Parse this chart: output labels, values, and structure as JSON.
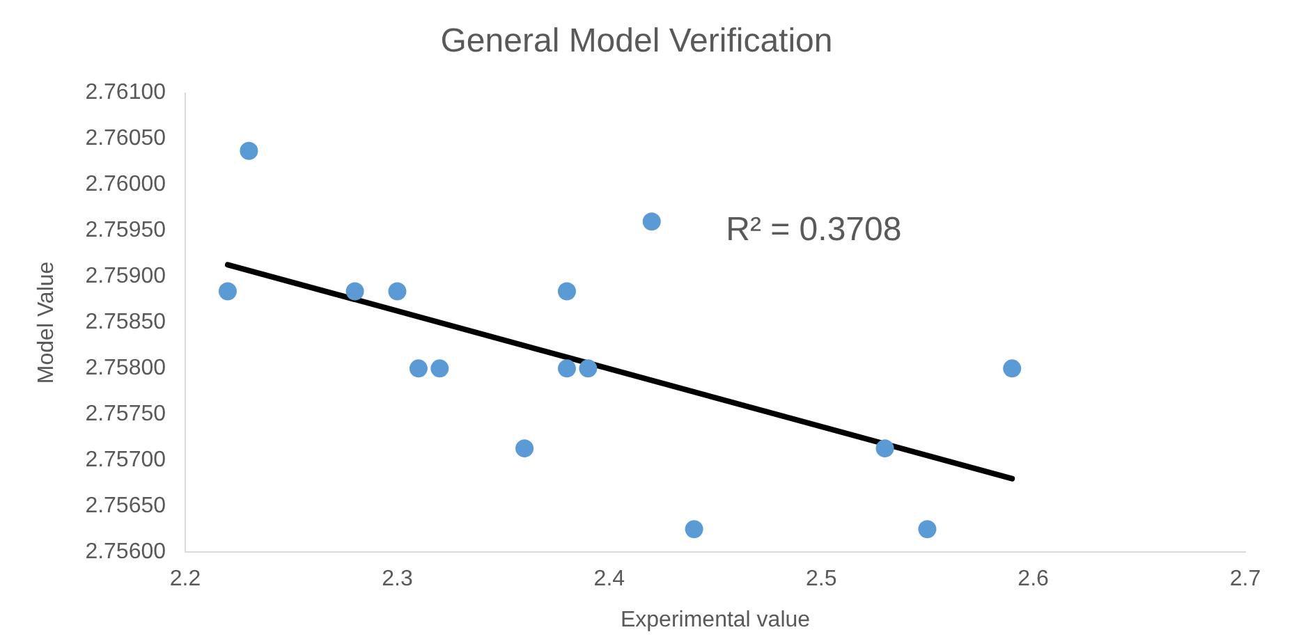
{
  "chart_data": {
    "type": "scatter",
    "title": "General Model Verification",
    "xlabel": "Experimental value",
    "ylabel": "Model Value",
    "annotations": [
      "R² = 0.3708"
    ],
    "marker": "circle",
    "grid": false,
    "legend": false,
    "xlim": [
      2.2,
      2.7
    ],
    "xticks": [
      {
        "value": 2.2,
        "label": "2.2"
      },
      {
        "value": 2.3,
        "label": "2.3"
      },
      {
        "value": 2.4,
        "label": "2.4"
      },
      {
        "value": 2.5,
        "label": "2.5"
      },
      {
        "value": 2.6,
        "label": "2.6"
      },
      {
        "value": 2.7,
        "label": "2.7"
      }
    ],
    "ylim": [
      2.756,
      2.761
    ],
    "yticks": [
      {
        "value": 2.756,
        "label": "2.75600"
      },
      {
        "value": 2.7565,
        "label": "2.75650"
      },
      {
        "value": 2.757,
        "label": "2.75700"
      },
      {
        "value": 2.7575,
        "label": "2.75750"
      },
      {
        "value": 2.758,
        "label": "2.75800"
      },
      {
        "value": 2.7585,
        "label": "2.75850"
      },
      {
        "value": 2.759,
        "label": "2.75900"
      },
      {
        "value": 2.7595,
        "label": "2.75950"
      },
      {
        "value": 2.76,
        "label": "2.76000"
      },
      {
        "value": 2.7605,
        "label": "2.76050"
      },
      {
        "value": 2.761,
        "label": "2.76100"
      }
    ],
    "series": [
      {
        "type": "scatter",
        "color": "#5b9bd5",
        "x": [
          2.22,
          2.23,
          2.28,
          2.3,
          2.31,
          2.32,
          2.36,
          2.38,
          2.38,
          2.39,
          2.42,
          2.44,
          2.53,
          2.55,
          2.59
        ],
        "values": [
          2.75884,
          2.76037,
          2.75884,
          2.75884,
          2.758,
          2.758,
          2.75713,
          2.75884,
          2.758,
          2.758,
          2.7596,
          2.75625,
          2.75713,
          2.75625,
          2.758
        ]
      },
      {
        "type": "line",
        "color": "#000000",
        "x": [
          2.22,
          2.59
        ],
        "values": [
          2.75913,
          2.7568
        ],
        "marker": "none"
      }
    ]
  }
}
